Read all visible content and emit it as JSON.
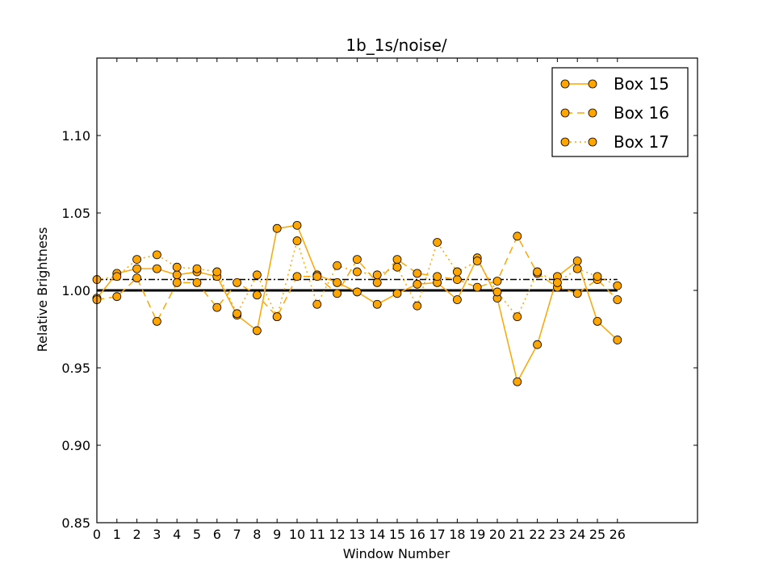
{
  "chart_data": {
    "type": "line",
    "title": "1b_1s/noise/",
    "xlabel": "Window Number",
    "ylabel": "Relative Brightness",
    "xlim": [
      0,
      30
    ],
    "ylim": [
      0.85,
      1.15
    ],
    "x": [
      0,
      1,
      2,
      3,
      4,
      5,
      6,
      7,
      8,
      9,
      10,
      11,
      12,
      13,
      14,
      15,
      16,
      17,
      18,
      19,
      20,
      21,
      22,
      23,
      24,
      25,
      26
    ],
    "xtick_labels": [
      "0",
      "1",
      "2",
      "3",
      "4",
      "5",
      "6",
      "7",
      "8",
      "9",
      "10",
      "11",
      "12",
      "13",
      "14",
      "15",
      "16",
      "17",
      "18",
      "19",
      "20",
      "21",
      "22",
      "23",
      "24",
      "25",
      "26"
    ],
    "yticks": [
      0.85,
      0.9,
      0.95,
      1.0,
      1.05,
      1.1
    ],
    "ytick_labels": [
      "0.85",
      "0.90",
      "0.95",
      "1.00",
      "1.05",
      "1.10"
    ],
    "series": [
      {
        "name": "Box 15",
        "linestyle": "solid",
        "values": [
          0.995,
          1.011,
          1.014,
          1.014,
          1.01,
          1.012,
          1.009,
          0.984,
          0.974,
          1.04,
          1.042,
          1.01,
          1.005,
          0.999,
          0.991,
          0.998,
          1.004,
          1.005,
          0.994,
          1.021,
          0.995,
          0.941,
          0.965,
          1.009,
          1.019,
          0.98,
          0.968
        ]
      },
      {
        "name": "Box 16",
        "linestyle": "dashed",
        "values": [
          0.994,
          0.996,
          1.008,
          0.98,
          1.005,
          1.005,
          0.989,
          1.005,
          0.997,
          0.983,
          1.009,
          1.009,
          0.998,
          1.02,
          1.005,
          1.02,
          1.011,
          1.009,
          1.007,
          1.002,
          1.006,
          1.035,
          1.011,
          1.002,
          0.998,
          1.007,
          0.994
        ]
      },
      {
        "name": "Box 17",
        "linestyle": "dotted",
        "values": [
          1.007,
          1.009,
          1.02,
          1.023,
          1.015,
          1.014,
          1.012,
          0.985,
          1.01,
          0.983,
          1.032,
          0.991,
          1.016,
          1.012,
          1.01,
          1.015,
          0.99,
          1.031,
          1.012,
          1.019,
          0.999,
          0.983,
          1.012,
          1.005,
          1.014,
          1.009,
          1.003
        ]
      }
    ],
    "reference_lines": [
      {
        "y": 1.0,
        "style": "solid"
      },
      {
        "y": 1.007,
        "style": "dash-dot"
      }
    ],
    "marker_color": "#FFA500",
    "legend_position": "top-right",
    "grid": false
  }
}
